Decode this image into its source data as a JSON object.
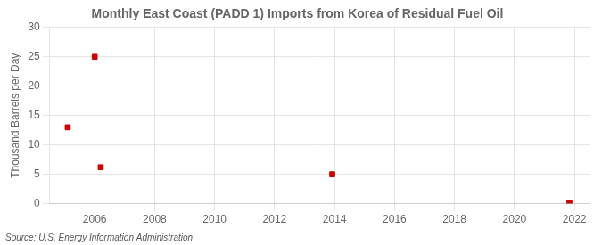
{
  "chart_data": {
    "type": "scatter",
    "title": "Monthly East Coast (PADD 1) Imports from Korea of Residual Fuel Oil",
    "ylabel": "Thousand Barrels per Day",
    "annotation": "Source: U.S. Energy Information Administration",
    "x": [
      2005.1,
      2006.0,
      2006.2,
      2013.92,
      2021.83
    ],
    "values": [
      13.0,
      25.0,
      6.2,
      5.0,
      0.15
    ],
    "color": "#cc0000",
    "marker": "square",
    "xlim": [
      2004.5,
      2022.5
    ],
    "ylim": [
      0,
      30
    ],
    "xticks": [
      2006,
      2008,
      2010,
      2012,
      2014,
      2016,
      2018,
      2020,
      2022
    ],
    "yticks": [
      0,
      5,
      10,
      15,
      20,
      25,
      30
    ],
    "grid": true
  }
}
